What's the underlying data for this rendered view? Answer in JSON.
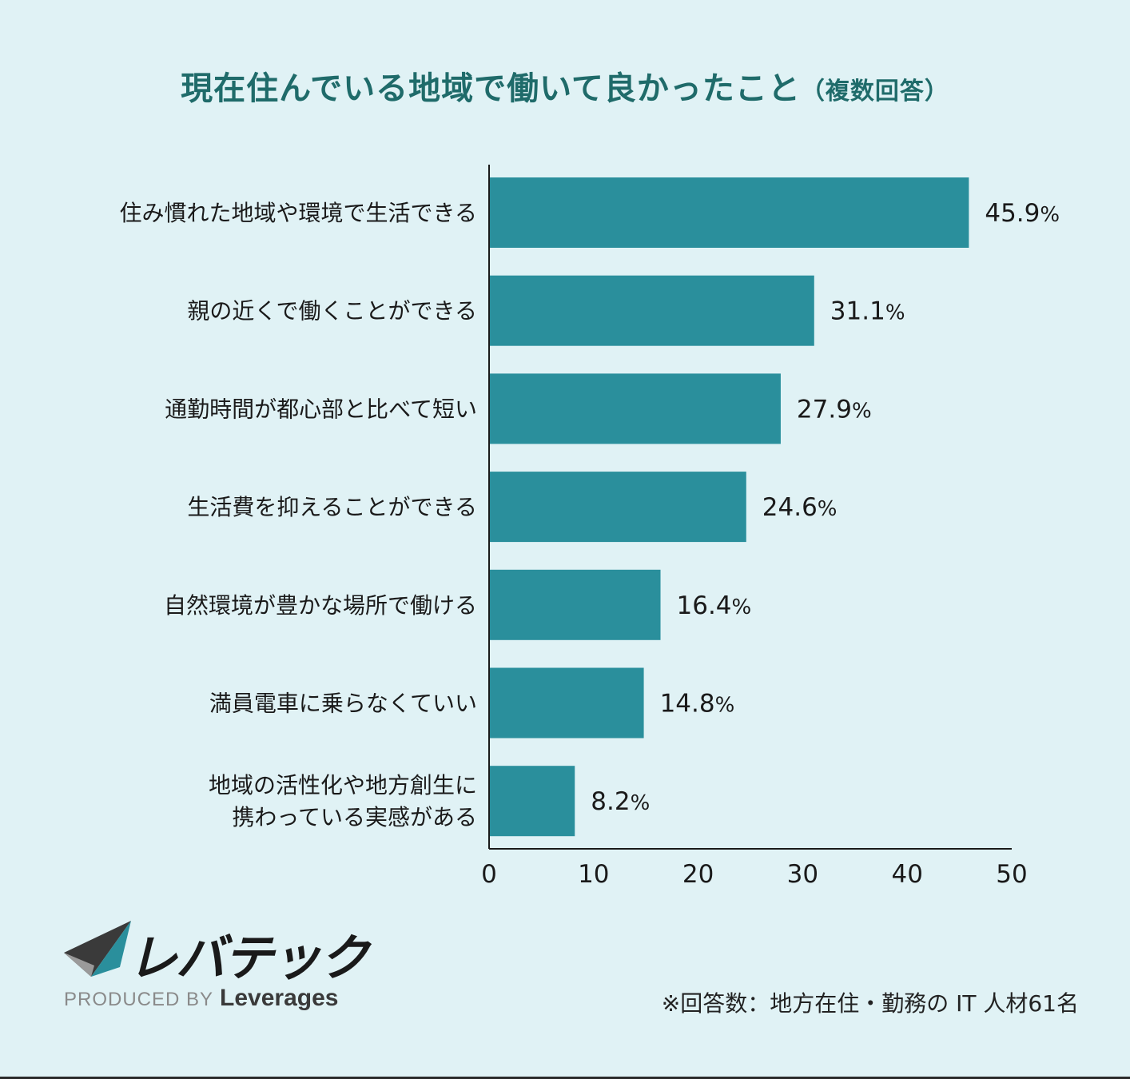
{
  "title": {
    "main": "現在住んでいる地域で働いて良かったこと",
    "sub": "（複数回答）"
  },
  "chart_data": {
    "type": "bar",
    "orientation": "horizontal",
    "categories": [
      [
        "住み慣れた地域や環境で生活できる"
      ],
      [
        "親の近くで働くことができる"
      ],
      [
        "通勤時間が都心部と比べて短い"
      ],
      [
        "生活費を抑えることができる"
      ],
      [
        "自然環境が豊かな場所で働ける"
      ],
      [
        "満員電車に乗らなくていい"
      ],
      [
        "地域の活性化や地方創生に",
        "携わっている実感がある"
      ]
    ],
    "values": [
      45.9,
      31.1,
      27.9,
      24.6,
      16.4,
      14.8,
      8.2
    ],
    "value_suffix": "%",
    "xlim": [
      0,
      50
    ],
    "xticks": [
      0,
      10,
      20,
      30,
      40,
      50
    ],
    "bar_color": "#2a8f9c",
    "grid": false
  },
  "logo": {
    "text": "レバテック",
    "produced_by": "PRODUCED BY",
    "brand": "Leverages"
  },
  "footnote": "※回答数：地方在住・勤務の IT 人材61名"
}
